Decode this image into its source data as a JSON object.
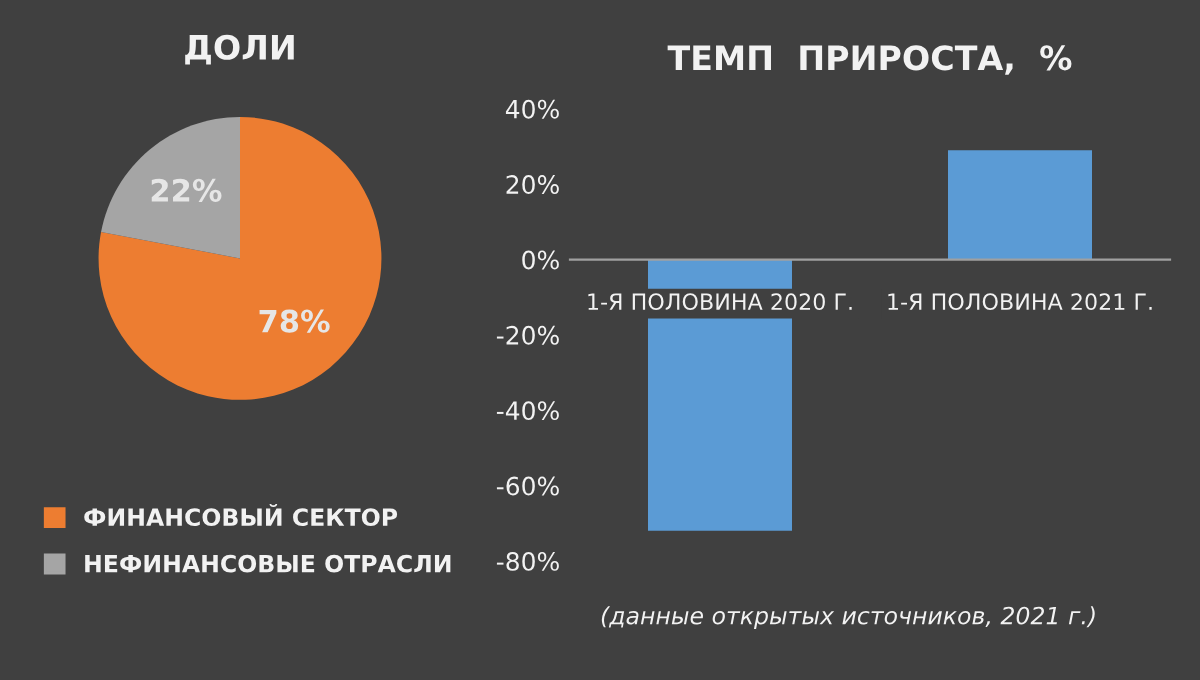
{
  "chart_data": [
    {
      "type": "pie",
      "title": "ДОЛИ",
      "categories": [
        "ФИНАНСОВЫЙ СЕКТОР",
        "НЕФИНАНСОВЫЕ ОТРАСЛИ"
      ],
      "values": [
        78,
        22
      ],
      "colors": [
        "#ed7d31",
        "#a5a5a5"
      ],
      "value_labels": [
        "78%",
        "22%"
      ],
      "legend": "bottom"
    },
    {
      "type": "bar",
      "title": "ТЕМП  ПРИРОСТА,  %",
      "categories": [
        "1-Я ПОЛОВИНА 2020 Г.",
        "1-Я ПОЛОВИНА 2021 Г."
      ],
      "values": [
        -72,
        29
      ],
      "color": "#5b9bd5",
      "ylim": [
        -80,
        40
      ],
      "yticks": [
        {
          "value": -80,
          "label": "-80%"
        },
        {
          "value": -60,
          "label": "-60%"
        },
        {
          "value": -40,
          "label": "-40%"
        },
        {
          "value": -20,
          "label": "-20%"
        },
        {
          "value": 0,
          "label": "0%"
        },
        {
          "value": 20,
          "label": "20%"
        },
        {
          "value": 40,
          "label": "40%"
        }
      ],
      "grid": false,
      "annotations": [
        "(данные открытых источников, 2021 г.)"
      ]
    }
  ]
}
